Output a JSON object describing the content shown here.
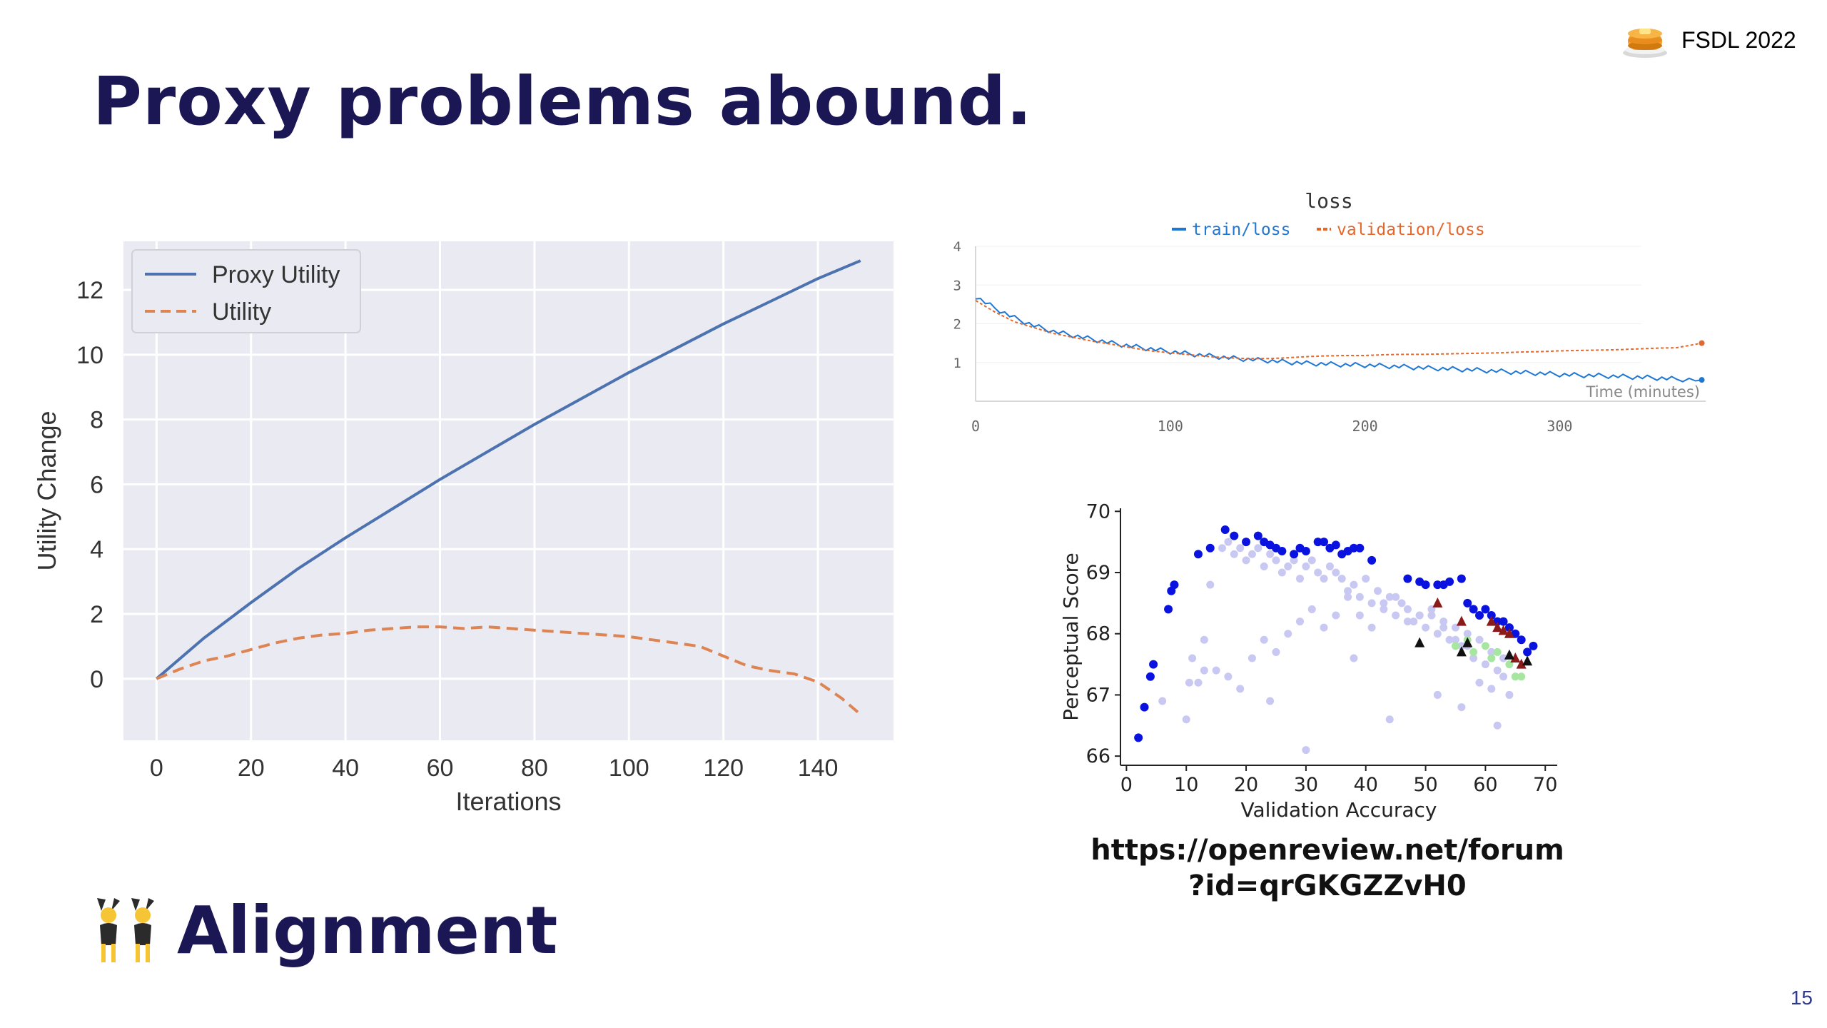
{
  "slide": {
    "title": "Proxy problems abound.",
    "brand": "FSDL 2022",
    "brand_icon": "pancake-stack-icon",
    "section_icon": "people-with-bunny-ears-icon",
    "section_text": "Alignment",
    "url_line1": "https://openreview.net/forum",
    "url_line2": "?id=qrGKGZZvH0",
    "page_number": "15"
  },
  "chart_data": [
    {
      "type": "line",
      "xlabel": "Iterations",
      "ylabel": "Utility Change",
      "xlim": [
        -7,
        156
      ],
      "ylim": [
        -1.9,
        13.5
      ],
      "xticks": [
        0,
        20,
        40,
        60,
        80,
        100,
        120,
        140
      ],
      "yticks": [
        0,
        2,
        4,
        6,
        8,
        10,
        12
      ],
      "grid": true,
      "legend": "top-left",
      "series": [
        {
          "name": "Proxy Utility",
          "color": "#4c72b0",
          "dash": "solid",
          "x": [
            0,
            10,
            20,
            30,
            40,
            50,
            60,
            70,
            80,
            90,
            100,
            110,
            120,
            130,
            140,
            149
          ],
          "y": [
            0,
            1.25,
            2.35,
            3.4,
            4.35,
            5.25,
            6.15,
            7.0,
            7.85,
            8.65,
            9.45,
            10.2,
            10.95,
            11.65,
            12.35,
            12.9
          ]
        },
        {
          "name": "Utility",
          "color": "#dd8452",
          "dash": "dashed",
          "x": [
            0,
            5,
            10,
            15,
            20,
            25,
            30,
            35,
            40,
            45,
            50,
            55,
            60,
            65,
            70,
            75,
            80,
            85,
            90,
            95,
            100,
            105,
            110,
            115,
            120,
            125,
            130,
            135,
            140,
            145,
            149
          ],
          "y": [
            0,
            0.3,
            0.55,
            0.7,
            0.9,
            1.1,
            1.25,
            1.35,
            1.4,
            1.5,
            1.55,
            1.6,
            1.6,
            1.55,
            1.6,
            1.55,
            1.5,
            1.45,
            1.4,
            1.35,
            1.3,
            1.2,
            1.1,
            1.0,
            0.7,
            0.4,
            0.25,
            0.15,
            -0.1,
            -0.6,
            -1.1
          ]
        }
      ]
    },
    {
      "type": "line",
      "title": "loss",
      "xlabel": "Time (minutes)",
      "xlim": [
        0,
        375
      ],
      "ylim": [
        0,
        4
      ],
      "xticks": [
        0,
        100,
        200,
        300
      ],
      "yticks": [
        1,
        2,
        3,
        4
      ],
      "legend": "top-center",
      "series": [
        {
          "name": "train/loss",
          "color": "#1f77d4",
          "x": [
            0,
            10,
            20,
            30,
            40,
            50,
            60,
            70,
            80,
            90,
            100,
            110,
            120,
            130,
            140,
            150,
            160,
            170,
            180,
            190,
            200,
            210,
            220,
            230,
            240,
            250,
            260,
            270,
            280,
            290,
            300,
            310,
            320,
            330,
            340,
            350,
            360,
            373
          ],
          "y": [
            2.7,
            2.4,
            2.15,
            1.95,
            1.8,
            1.7,
            1.6,
            1.5,
            1.42,
            1.35,
            1.28,
            1.22,
            1.17,
            1.12,
            1.08,
            1.05,
            1.01,
            0.98,
            0.96,
            0.94,
            0.93,
            0.91,
            0.89,
            0.86,
            0.84,
            0.82,
            0.8,
            0.77,
            0.74,
            0.72,
            0.69,
            0.67,
            0.66,
            0.64,
            0.62,
            0.6,
            0.57,
            0.55
          ]
        },
        {
          "name": "validation/loss",
          "color": "#e4672b",
          "x": [
            0,
            10,
            20,
            30,
            40,
            50,
            60,
            70,
            80,
            90,
            100,
            110,
            120,
            130,
            140,
            150,
            160,
            170,
            180,
            190,
            200,
            210,
            220,
            230,
            240,
            250,
            260,
            270,
            280,
            290,
            300,
            310,
            320,
            330,
            340,
            350,
            360,
            373
          ],
          "y": [
            2.6,
            2.3,
            2.05,
            1.9,
            1.75,
            1.65,
            1.55,
            1.47,
            1.38,
            1.3,
            1.25,
            1.2,
            1.15,
            1.12,
            1.1,
            1.1,
            1.12,
            1.15,
            1.17,
            1.18,
            1.18,
            1.2,
            1.21,
            1.21,
            1.22,
            1.23,
            1.24,
            1.25,
            1.27,
            1.28,
            1.3,
            1.31,
            1.32,
            1.33,
            1.35,
            1.37,
            1.38,
            1.5
          ]
        }
      ]
    },
    {
      "type": "scatter",
      "xlabel": "Validation Accuracy",
      "ylabel": "Perceptual Score",
      "xlim": [
        -1,
        72
      ],
      "ylim": [
        65.85,
        70.05
      ],
      "xticks": [
        0,
        10,
        20,
        30,
        40,
        50,
        60,
        70
      ],
      "yticks": [
        66,
        67,
        68,
        69,
        70
      ],
      "series": [
        {
          "marker": "circle",
          "color": "#0a12e0",
          "x": [
            2,
            3,
            4,
            4.5,
            7,
            7.5,
            8,
            12,
            14,
            16.5,
            18,
            20,
            22,
            23,
            24,
            25,
            26,
            28,
            29,
            30,
            32,
            33,
            34,
            35,
            36,
            37,
            38,
            39,
            41,
            47,
            49,
            50,
            52,
            53,
            54,
            56,
            57,
            58,
            59,
            60,
            61,
            62,
            63,
            64,
            65,
            66,
            67,
            68
          ],
          "y": [
            66.3,
            66.8,
            67.3,
            67.5,
            68.4,
            68.7,
            68.8,
            69.3,
            69.4,
            69.7,
            69.6,
            69.5,
            69.6,
            69.5,
            69.45,
            69.4,
            69.35,
            69.3,
            69.4,
            69.35,
            69.5,
            69.5,
            69.4,
            69.45,
            69.3,
            69.35,
            69.4,
            69.4,
            69.2,
            68.9,
            68.85,
            68.8,
            68.8,
            68.8,
            68.85,
            68.9,
            68.5,
            68.4,
            68.3,
            68.4,
            68.3,
            68.2,
            68.2,
            68.1,
            68.0,
            67.9,
            67.7,
            67.8
          ]
        },
        {
          "marker": "circle",
          "color": "#c8c8f2",
          "x": [
            6,
            10,
            10.5,
            11,
            13,
            14,
            16,
            17,
            18,
            19,
            20,
            21,
            22,
            23,
            24,
            25,
            26,
            27,
            28,
            29,
            30,
            31,
            32,
            33,
            34,
            35,
            36,
            37,
            38,
            39,
            40,
            41,
            42,
            43,
            44,
            45,
            46,
            47,
            48,
            49,
            50,
            51,
            52,
            53,
            54,
            55,
            56,
            57,
            58,
            59,
            60,
            61,
            62,
            63,
            64,
            65,
            13,
            15,
            17,
            19,
            21,
            23,
            25,
            27,
            29,
            31,
            33,
            35,
            37,
            39,
            41,
            43,
            45,
            47,
            49,
            51,
            53,
            55,
            57,
            59,
            61,
            63,
            12,
            24,
            30,
            38,
            44,
            52,
            56,
            62
          ],
          "y": [
            66.9,
            66.6,
            67.2,
            67.6,
            67.9,
            68.8,
            69.4,
            69.5,
            69.3,
            69.4,
            69.2,
            69.3,
            69.4,
            69.1,
            69.3,
            69.2,
            69.0,
            69.1,
            69.2,
            68.9,
            69.1,
            69.2,
            69.0,
            68.9,
            69.1,
            69.0,
            68.9,
            68.7,
            68.8,
            68.6,
            68.9,
            68.5,
            68.7,
            68.4,
            68.6,
            68.3,
            68.5,
            68.4,
            68.2,
            68.3,
            68.1,
            68.3,
            68.0,
            68.2,
            67.9,
            68.1,
            67.8,
            68.0,
            67.6,
            67.9,
            67.5,
            67.7,
            67.4,
            67.3,
            67.0,
            67.3,
            67.4,
            67.4,
            67.3,
            67.1,
            67.6,
            67.9,
            67.7,
            68.0,
            68.2,
            68.4,
            68.1,
            68.3,
            68.6,
            68.3,
            68.1,
            68.5,
            68.6,
            68.2,
            68.3,
            68.4,
            68.1,
            67.9,
            67.8,
            67.2,
            67.1,
            67.6,
            67.2,
            66.9,
            66.1,
            67.6,
            66.6,
            67.0,
            66.8,
            66.5
          ]
        },
        {
          "marker": "triangle",
          "color": "#8b1a1a",
          "x": [
            52,
            56,
            61,
            62,
            63,
            64,
            65,
            66
          ],
          "y": [
            68.5,
            68.2,
            68.2,
            68.1,
            68.05,
            68.0,
            67.6,
            67.5
          ]
        },
        {
          "marker": "triangle",
          "color": "#111111",
          "x": [
            49,
            56,
            57,
            64,
            67
          ],
          "y": [
            67.85,
            67.7,
            67.85,
            67.65,
            67.55
          ]
        },
        {
          "marker": "circle",
          "color": "#a6e6a0",
          "x": [
            55,
            57,
            58,
            60,
            61,
            62,
            64,
            65,
            66
          ],
          "y": [
            67.8,
            67.9,
            67.7,
            67.8,
            67.6,
            67.7,
            67.5,
            67.3,
            67.3
          ]
        }
      ]
    }
  ]
}
